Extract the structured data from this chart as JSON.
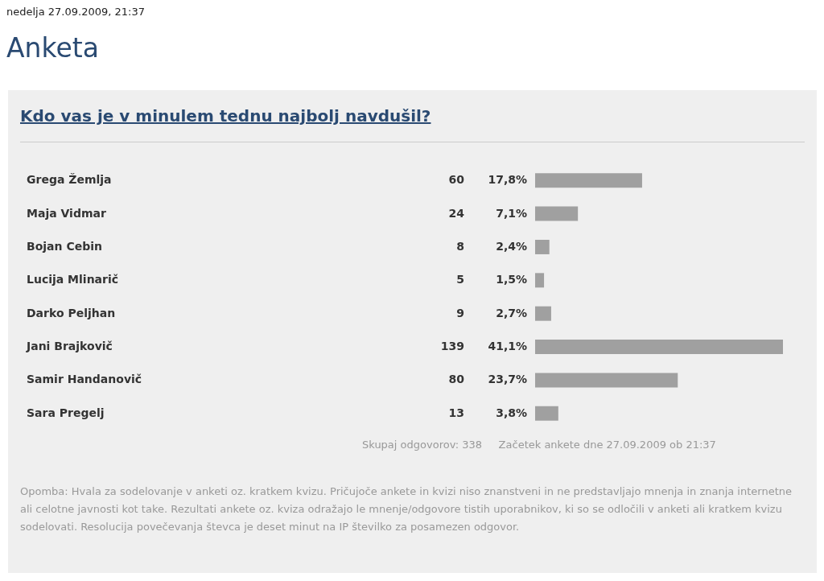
{
  "chart_data": {
    "type": "bar",
    "orientation": "horizontal",
    "title": "Anketa",
    "subtitle": "Kdo vas je v minulem tednu najbolj navdušil?",
    "categories": [
      "Grega Žemlja",
      "Maja Vidmar",
      "Bojan Cebin",
      "Lucija Mlinarič",
      "Darko Peljhan",
      "Jani Brajkovič",
      "Samir Handanovič",
      "Sara Pregelj"
    ],
    "values": [
      60,
      24,
      8,
      5,
      9,
      139,
      80,
      13
    ],
    "color": "#a0a0a0",
    "data_labels": true,
    "annotations": [
      "nedelja 27.09.2009, 21:37",
      "17,8%",
      "7,1%",
      "2,4%",
      "1,5%",
      "2,7%",
      "41,1%",
      "23,7%",
      "3,8%",
      "Skupaj odgovorov: 338",
      "Začetek ankete dne 27.09.2009 ob 21:37",
      "Opomba: Hvala za sodelovanje v anketi oz. kratkem kvizu. Pričujoče ankete in kvizi niso znanstveni in ne predstavljajo mnenja in znanja internetne ali celotne javnosti kot take. Rezultati ankete oz. kviza odražajo le mnenje/odgovore tistih uporabnikov, ki so se odločili v anketi ali kratkem kvizu sodelovati. Resolucija povečevanja števca je deset minut na IP številko za posamezen odgovor."
    ]
  }
}
